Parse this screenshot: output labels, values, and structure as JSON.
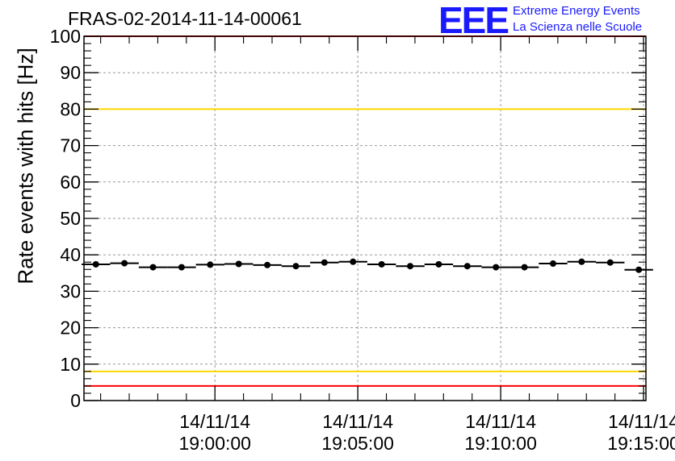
{
  "header": {
    "title": "FRAS-02-2014-11-14-00061"
  },
  "logo": {
    "mark": "EEE",
    "line1": "Extreme Energy Events",
    "line2": "La Scienza nelle Scuole"
  },
  "colors": {
    "brand": "#1a1aff",
    "red_line": "#ff0000",
    "yellow_line": "#ffd700",
    "points": "#000000",
    "grid": "#999999"
  },
  "chart_data": {
    "type": "scatter",
    "title": "FRAS-02-2014-11-14-00061",
    "xlabel": "",
    "ylabel": "Rate events with hits [Hz]",
    "ylim": [
      0,
      100
    ],
    "xlim": [
      "14/11/14 18:55:25",
      "14/11/14 19:15:05"
    ],
    "grid": true,
    "y_ticks": [
      0,
      10,
      20,
      30,
      40,
      50,
      60,
      70,
      80,
      90,
      100
    ],
    "x_ticks": [
      {
        "date": "14/11/14",
        "time": "19:00:00"
      },
      {
        "date": "14/11/14",
        "time": "19:05:00"
      },
      {
        "date": "14/11/14",
        "time": "19:10:00"
      },
      {
        "date": "14/11/14",
        "time": "19:15:00"
      }
    ],
    "reference_lines": [
      {
        "y": 100,
        "color": "red"
      },
      {
        "y": 80,
        "color": "yellow"
      },
      {
        "y": 8,
        "color": "yellow"
      },
      {
        "y": 4,
        "color": "red"
      }
    ],
    "series": [
      {
        "x": [
          "18:55:50",
          "18:56:50",
          "18:57:50",
          "18:58:50",
          "18:59:50",
          "19:00:50",
          "19:01:50",
          "19:02:50",
          "19:03:50",
          "19:04:50",
          "19:05:50",
          "19:06:50",
          "19:07:50",
          "19:08:50",
          "19:09:50",
          "19:10:50",
          "19:11:50",
          "19:12:50",
          "19:13:50",
          "19:14:50"
        ],
        "y": [
          37.4,
          37.7,
          36.6,
          36.6,
          37.3,
          37.5,
          37.2,
          36.9,
          37.9,
          38.1,
          37.4,
          36.9,
          37.4,
          36.9,
          36.6,
          36.6,
          37.6,
          38.1,
          37.9,
          35.9
        ]
      }
    ]
  }
}
